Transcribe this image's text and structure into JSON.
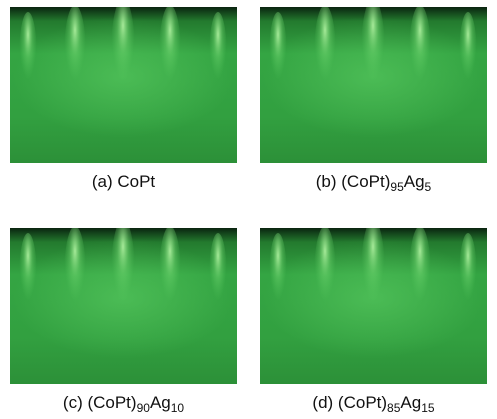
{
  "panels": [
    {
      "caption": [
        {
          "text": "(a) CoPt"
        }
      ]
    },
    {
      "caption": [
        {
          "text": "(b) (CoPt)"
        },
        {
          "text": "95",
          "sub": true
        },
        {
          "text": "Ag"
        },
        {
          "text": "5",
          "sub": true
        }
      ]
    },
    {
      "caption": [
        {
          "text": "(c) (CoPt)"
        },
        {
          "text": "90",
          "sub": true
        },
        {
          "text": "Ag"
        },
        {
          "text": "10",
          "sub": true
        }
      ]
    },
    {
      "caption": [
        {
          "text": "(d) (CoPt)"
        },
        {
          "text": "85",
          "sub": true
        },
        {
          "text": "Ag"
        },
        {
          "text": "15",
          "sub": true
        }
      ]
    }
  ]
}
